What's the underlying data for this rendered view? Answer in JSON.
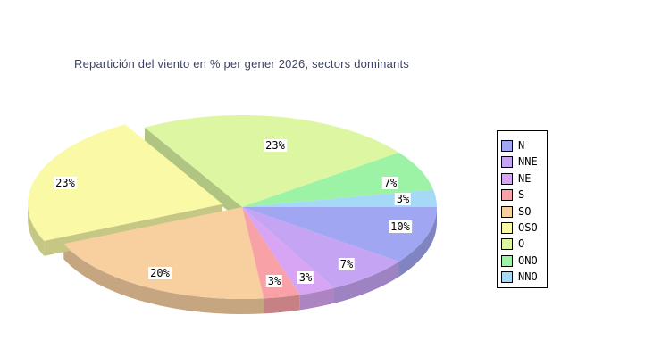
{
  "title": {
    "text": "Repartición del viento en % per gener 2026, sectors dominants"
  },
  "chart_data": {
    "type": "pie",
    "style": "3d-exploded",
    "title": "Repartición del viento en % per gener 2026, sectors dominants",
    "unit": "%",
    "direction": "clockwise",
    "start_angle_east_deg": 0,
    "legend_position": "right",
    "categories": [
      "N",
      "NNE",
      "NE",
      "S",
      "SO",
      "OSO",
      "O",
      "ONO",
      "NNO"
    ],
    "values": [
      10,
      7,
      3,
      3,
      20,
      23,
      23,
      7,
      3
    ],
    "labels": [
      "10%",
      "7%",
      "3%",
      "3%",
      "20%",
      "23%",
      "23%",
      "7%",
      "3%"
    ],
    "colors": [
      "#a0a6f2",
      "#c5a4f3",
      "#d7a5f3",
      "#f8a1a6",
      "#f8d0a0",
      "#f9f9a6",
      "#dcf6a1",
      "#9cf2a5",
      "#a6d9f6"
    ],
    "exploded": "OSO"
  },
  "legend": {
    "items": [
      {
        "label": "N",
        "color": "#a0a6f2"
      },
      {
        "label": "NNE",
        "color": "#c5a4f3"
      },
      {
        "label": "NE",
        "color": "#d7a5f3"
      },
      {
        "label": "S",
        "color": "#f8a1a6"
      },
      {
        "label": "SO",
        "color": "#f8d0a0"
      },
      {
        "label": "OSO",
        "color": "#f9f9a6"
      },
      {
        "label": "O",
        "color": "#dcf6a1"
      },
      {
        "label": "ONO",
        "color": "#9cf2a5"
      },
      {
        "label": "NNO",
        "color": "#a6d9f6"
      }
    ]
  }
}
